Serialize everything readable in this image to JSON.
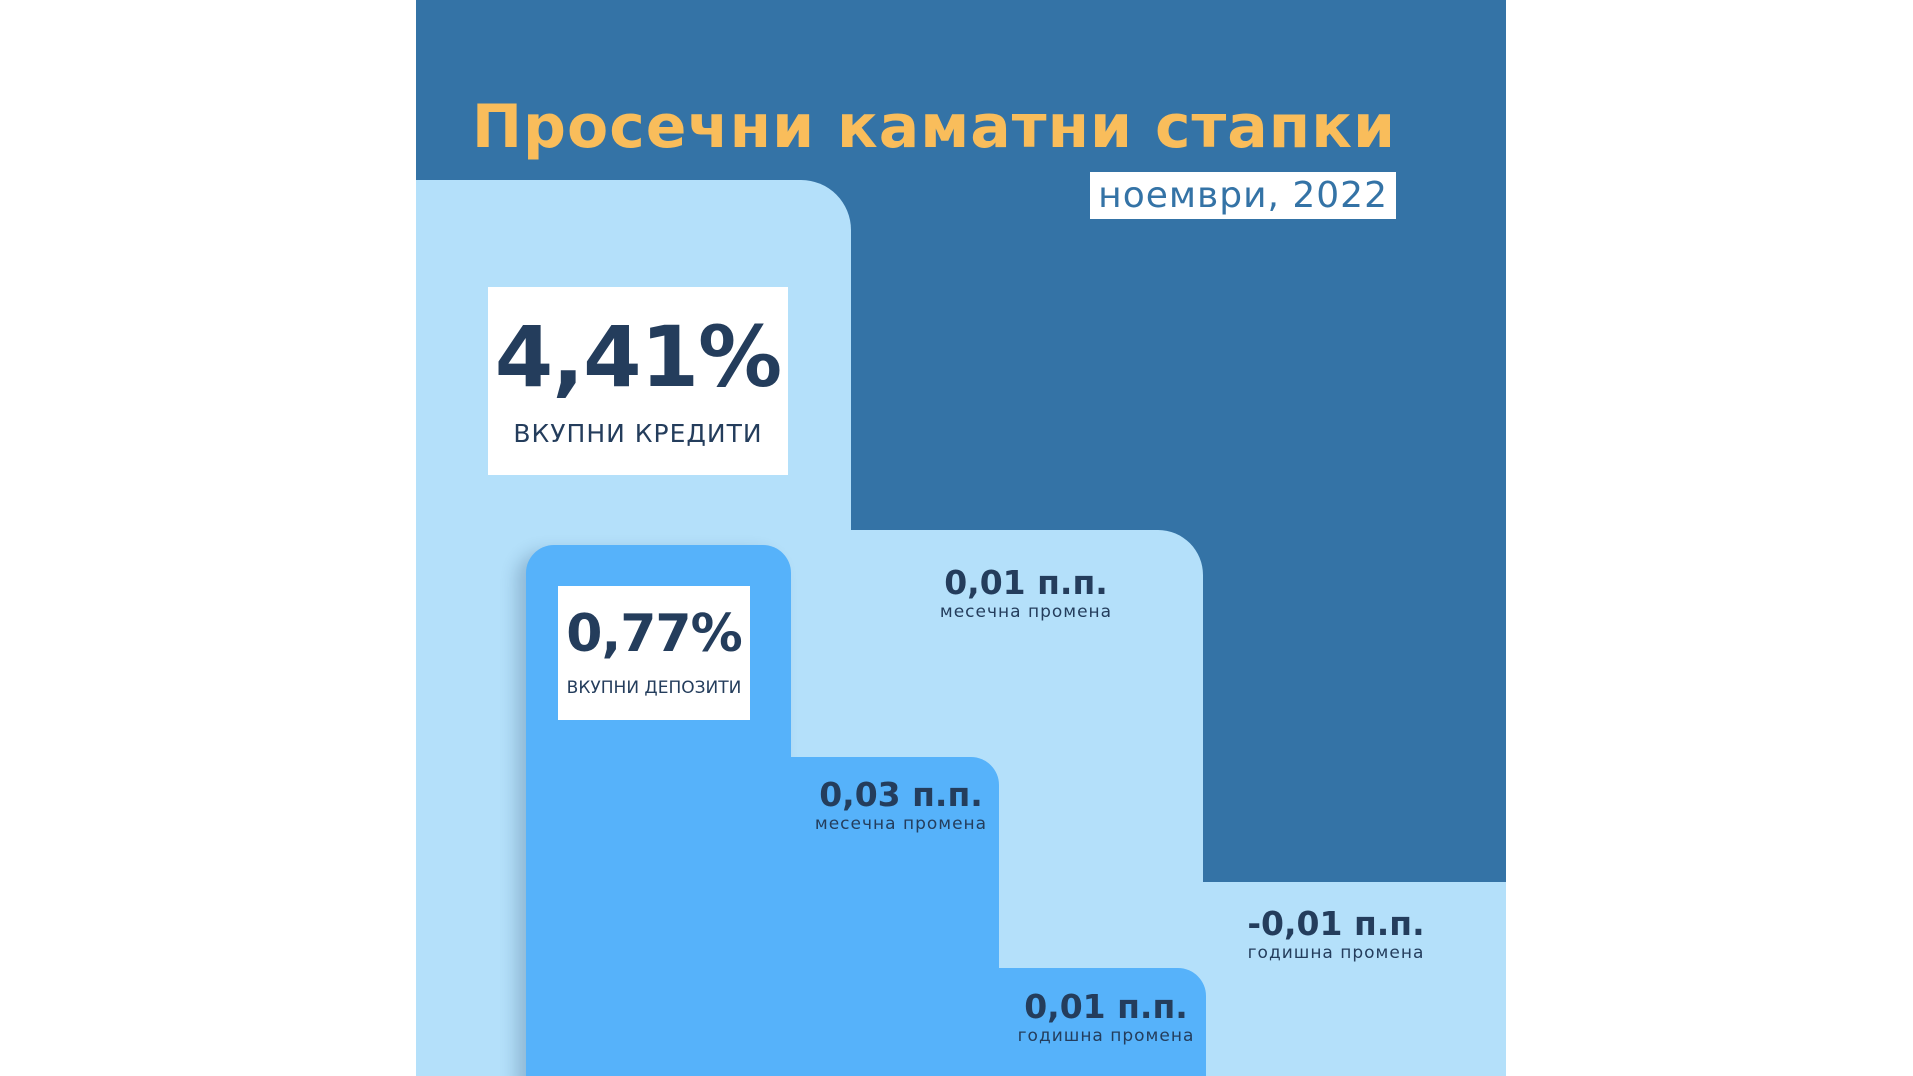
{
  "poster": {
    "title": "Просечни каматни стапки",
    "date": "ноември, 2022"
  },
  "loans": {
    "value": "4,41%",
    "label": "ВКУПНИ КРЕДИТИ",
    "monthly_change": "0,01 п.п.",
    "monthly_label": "месечна промена",
    "yearly_change": "-0,01 п.п.",
    "yearly_label": "годишна промена"
  },
  "deposits": {
    "value": "0,77%",
    "label": "ВКУПНИ ДЕПОЗИТИ",
    "monthly_change": "0,03 п.п.",
    "monthly_label": "месечна промена",
    "yearly_change": "0,01 п.п.",
    "yearly_label": "годишна промена"
  },
  "colors": {
    "background": "#3473a6",
    "title": "#f9bd5b",
    "loans_steps": "#b4e0fa",
    "deposits_steps": "#56b2fa",
    "text": "#243d5c"
  }
}
